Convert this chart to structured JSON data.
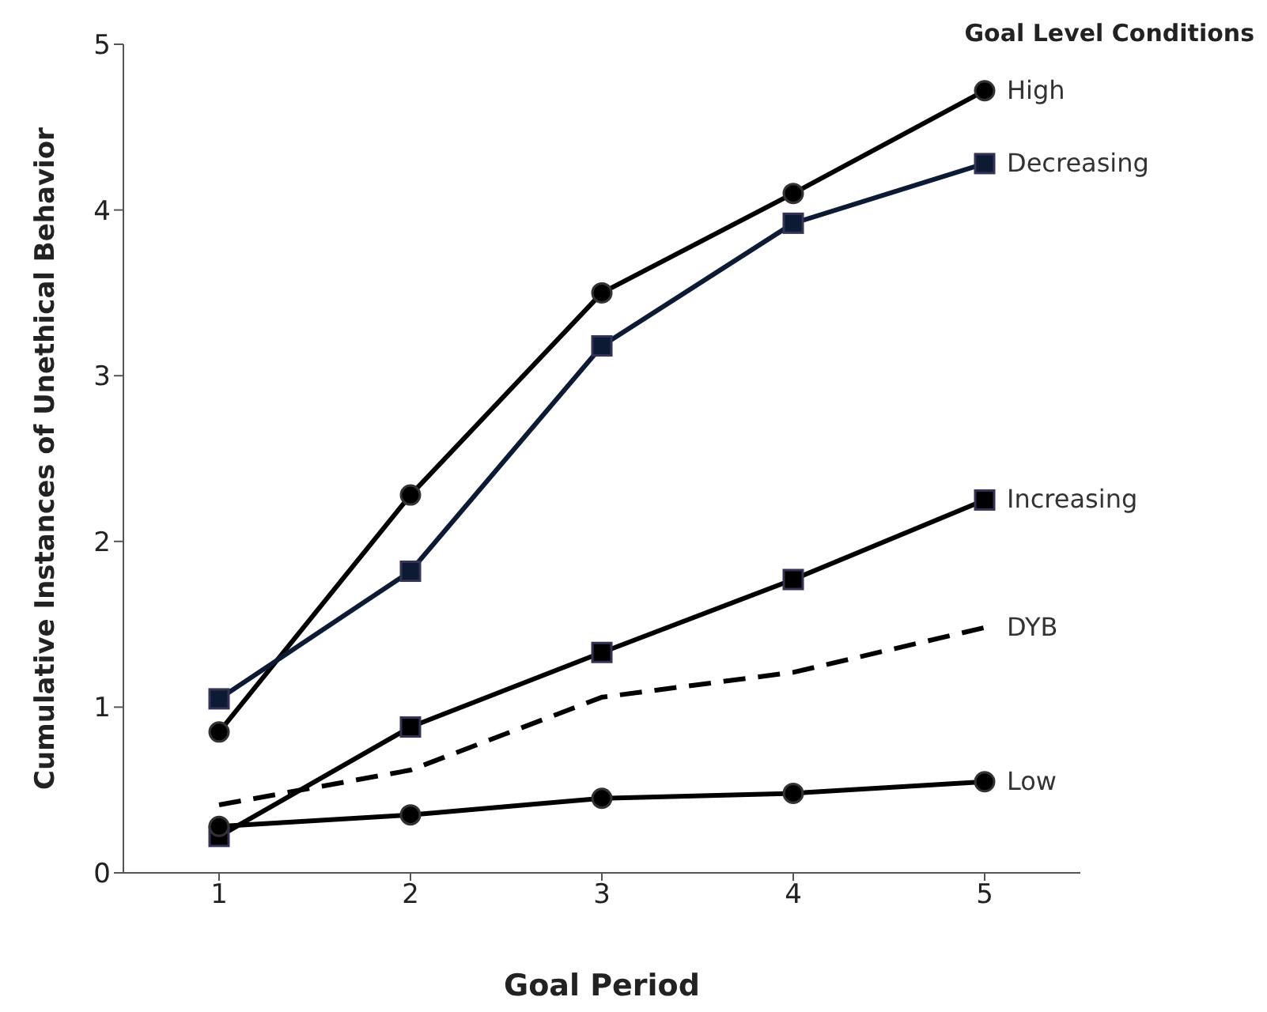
{
  "chart_data": {
    "type": "line",
    "xlabel": "Goal Period",
    "ylabel": "Cumulative Instances of Unethical Behavior",
    "legend_title": "Goal Level Conditions",
    "x": [
      1,
      2,
      3,
      4,
      5
    ],
    "xlim": [
      0.5,
      5.5
    ],
    "xticks": [
      1,
      2,
      3,
      4,
      5
    ],
    "ylim": [
      0,
      5
    ],
    "yticks": [
      0,
      1,
      2,
      3,
      4,
      5
    ],
    "grid": false,
    "series": [
      {
        "name": "High",
        "color": "#000000",
        "marker": "circle",
        "values": [
          0.85,
          2.28,
          3.5,
          4.1,
          4.72
        ]
      },
      {
        "name": "Decreasing",
        "color": "#0d1a33",
        "marker": "square",
        "values": [
          1.05,
          1.82,
          3.18,
          3.92,
          4.28
        ]
      },
      {
        "name": "Increasing",
        "color": "#000000",
        "marker": "square",
        "values": [
          0.22,
          0.88,
          1.33,
          1.77,
          2.25
        ]
      },
      {
        "name": "DYB",
        "color": "#000000",
        "marker": "none",
        "line_style": "dashed",
        "values": [
          0.41,
          0.62,
          1.06,
          1.21,
          1.48
        ]
      },
      {
        "name": "Low",
        "color": "#000000",
        "marker": "circle",
        "values": [
          0.28,
          0.35,
          0.45,
          0.48,
          0.55
        ]
      }
    ]
  }
}
